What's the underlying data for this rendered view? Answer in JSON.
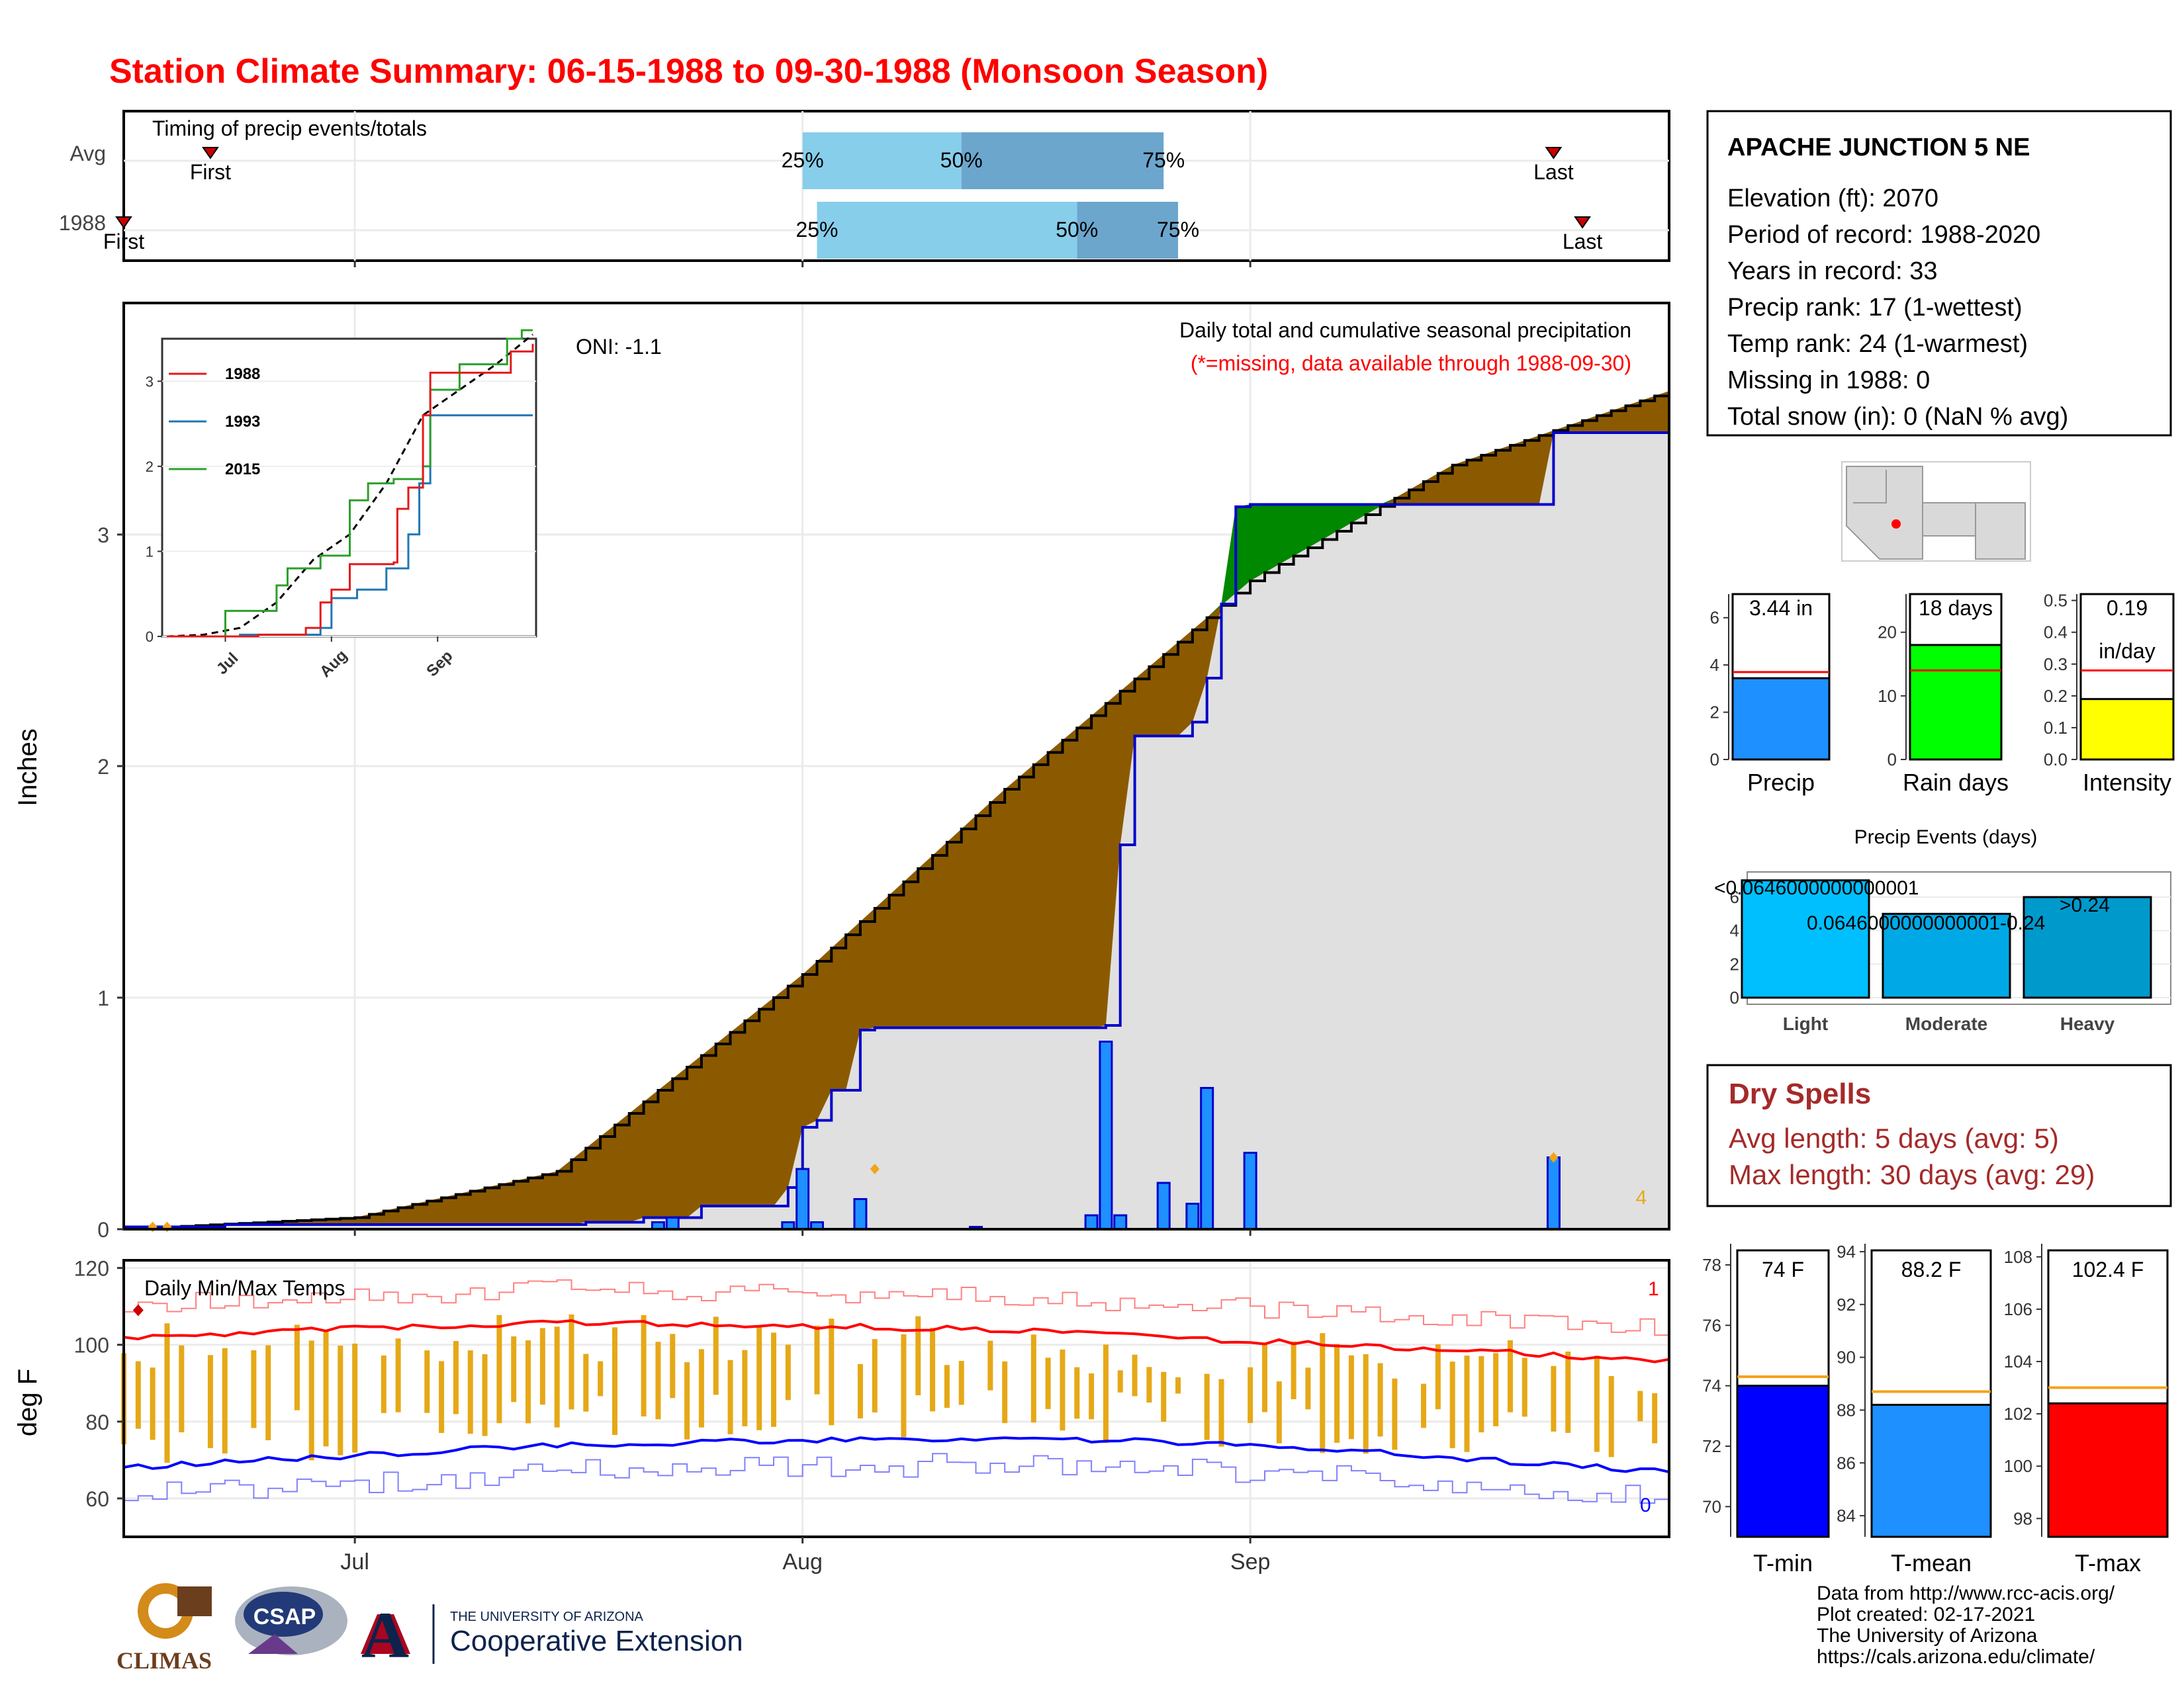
{
  "title": "Station Climate Summary: 06-15-1988 to 09-30-1988 (Monsoon Season)",
  "colors": {
    "title": "#ff0000",
    "cum_obs": "#8b5a00",
    "cum_above_avg": "#008800",
    "daily_bar": "#1e90ff",
    "tmax": "#ff0000",
    "tmin": "#0000ff",
    "range_bar": "#e6a817",
    "dry_spell": "#a52a2a"
  },
  "timing": {
    "title": "Timing of precip events/totals",
    "rows": [
      "Avg",
      "1988"
    ],
    "first_label": "First",
    "last_label": "Last",
    "pct_labels": [
      "25%",
      "50%",
      "75%"
    ]
  },
  "main_panel": {
    "ylabel": "Inches",
    "title": "Daily total and cumulative seasonal precipitation",
    "subtitle": "(*=missing, data available through 1988-09-30)",
    "oni": "ONI: -1.1",
    "y_ticks": [
      "0",
      "1",
      "2",
      "3"
    ],
    "missing_count": "4"
  },
  "inset": {
    "legend": [
      "1988",
      "1993",
      "2015"
    ],
    "y_ticks": [
      "0",
      "1",
      "2",
      "3"
    ],
    "x_ticks": [
      "Jul",
      "Aug",
      "Sep"
    ]
  },
  "temp_panel": {
    "title": "Daily Min/Max Temps",
    "ylabel": "deg F",
    "y_ticks": [
      "60",
      "80",
      "100",
      "120"
    ],
    "count_max": "1",
    "count_min": "0"
  },
  "x_axis": [
    "Jul",
    "Aug",
    "Sep"
  ],
  "station": {
    "name": "APACHE JUNCTION 5 NE",
    "lines": [
      "Elevation (ft): 2070",
      "Period of record: 1988-2020",
      "Years in record: 33",
      "Precip rank: 17 (1-wettest)",
      "Temp rank: 24 (1-warmest)",
      "Missing in 1988: 0",
      "Total snow (in): 0 (NaN % avg)"
    ]
  },
  "mini_bars": {
    "precip": {
      "label": "Precip",
      "value_text": "3.44 in",
      "ticks": [
        "0",
        "2",
        "4",
        "6"
      ]
    },
    "raindays": {
      "label": "Rain days",
      "value_text": "18 days",
      "ticks": [
        "0",
        "10",
        "20"
      ]
    },
    "intensity": {
      "label": "Intensity",
      "value_text": "0.19",
      "value_text2": "in/day",
      "ticks": [
        "0.0",
        "0.1",
        "0.2",
        "0.3",
        "0.4",
        "0.5"
      ]
    }
  },
  "events": {
    "title": "Precip Events (days)",
    "categories": [
      "Light",
      "Moderate",
      "Heavy"
    ],
    "bar_labels": [
      "<0.0646000000000001",
      "0.0646000000000001-0.24",
      ">0.24"
    ],
    "ticks": [
      "0",
      "2",
      "4",
      "6"
    ]
  },
  "dry_spells": {
    "title": "Dry Spells",
    "avg": "Avg length: 5 days (avg: 5)",
    "max": "Max length: 30 days (avg: 29)"
  },
  "temp_bars": {
    "tmin": {
      "label": "T-min",
      "value_text": "74 F",
      "ticks": [
        "70",
        "72",
        "74",
        "76",
        "78"
      ]
    },
    "tmean": {
      "label": "T-mean",
      "value_text": "88.2 F",
      "ticks": [
        "84",
        "86",
        "88",
        "90",
        "92",
        "94"
      ]
    },
    "tmax": {
      "label": "T-max",
      "value_text": "102.4 F",
      "ticks": [
        "98",
        "100",
        "102",
        "104",
        "106",
        "108"
      ]
    }
  },
  "footer": {
    "lines": [
      "Data from http://www.rcc-acis.org/",
      "Plot created: 02-17-2021",
      "The University of Arizona",
      "https://cals.arizona.edu/climate/"
    ],
    "logo_climas": "CLIMAS",
    "logo_csap": "CSAP",
    "logo_ua": "A",
    "ua_small": "THE UNIVERSITY OF ARIZONA",
    "ua_big": "Cooperative Extension"
  },
  "chart_data": [
    {
      "type": "bar",
      "name": "Timing of precip events/totals",
      "categories": [
        "Avg",
        "1988"
      ],
      "series": [
        {
          "name": "First",
          "values": [
            "1988-06-21",
            "1988-06-15"
          ]
        },
        {
          "name": "25%",
          "values": [
            "1988-08-01",
            "1988-08-02"
          ]
        },
        {
          "name": "50%",
          "values": [
            "1988-08-12",
            "1988-08-20"
          ]
        },
        {
          "name": "75%",
          "values": [
            "1988-08-26",
            "1988-08-27"
          ]
        },
        {
          "name": "Last",
          "values": [
            "1988-09-22",
            "1988-09-24"
          ]
        }
      ]
    },
    {
      "type": "area",
      "title": "Daily total and cumulative seasonal precipitation",
      "ylabel": "Inches",
      "xlim": [
        "1988-06-15",
        "1988-09-30"
      ],
      "ylim": [
        0,
        4
      ],
      "cumulative_1988": {
        "x": [
          "1988-06-15",
          "1988-06-22",
          "1988-07-08",
          "1988-07-17",
          "1988-07-21",
          "1988-07-25",
          "1988-07-31",
          "1988-08-01",
          "1988-08-02",
          "1988-08-03",
          "1988-08-05",
          "1988-08-06",
          "1988-08-22",
          "1988-08-23",
          "1988-08-24",
          "1988-08-28",
          "1988-08-29",
          "1988-08-30",
          "1988-08-31",
          "1988-09-01",
          "1988-09-22",
          "1988-09-30"
        ],
        "y": [
          0.01,
          0.02,
          0.02,
          0.03,
          0.05,
          0.1,
          0.18,
          0.44,
          0.47,
          0.6,
          0.86,
          0.87,
          0.88,
          1.66,
          2.13,
          2.19,
          2.38,
          2.7,
          3.12,
          3.13,
          3.44,
          3.44
        ]
      },
      "cumulative_avg": {
        "x": [
          "1988-06-15",
          "1988-07-01",
          "1988-07-15",
          "1988-08-01",
          "1988-08-15",
          "1988-09-01",
          "1988-09-15",
          "1988-09-30"
        ],
        "y": [
          0.0,
          0.05,
          0.25,
          1.1,
          1.9,
          2.8,
          3.3,
          3.62
        ]
      },
      "daily_1988": {
        "x": [
          "1988-07-22",
          "1988-07-23",
          "1988-07-31",
          "1988-08-01",
          "1988-08-02",
          "1988-08-05",
          "1988-08-13",
          "1988-08-21",
          "1988-08-22",
          "1988-08-23",
          "1988-08-26",
          "1988-08-28",
          "1988-08-29",
          "1988-09-01",
          "1988-09-22"
        ],
        "y": [
          0.03,
          0.05,
          0.03,
          0.26,
          0.03,
          0.13,
          0.01,
          0.06,
          0.81,
          0.06,
          0.2,
          0.11,
          0.61,
          0.33,
          0.31
        ]
      }
    },
    {
      "type": "line",
      "name": "Inset cumulative precipitation",
      "x_ticks": [
        "Jul",
        "Aug",
        "Sep"
      ],
      "ylim": [
        0,
        3.5
      ],
      "series": [
        {
          "name": "1988",
          "values": [
            0.02,
            0.55,
            3.44
          ]
        },
        {
          "name": "1993",
          "values": [
            0.02,
            0.4,
            2.6
          ]
        },
        {
          "name": "2015",
          "values": [
            0.3,
            0.95,
            3.6
          ]
        }
      ]
    },
    {
      "type": "line",
      "title": "Daily Min/Max Temps",
      "ylabel": "deg F",
      "ylim": [
        50,
        122
      ],
      "tmax_avg": {
        "x": [
          "1988-06-15",
          "1988-07-15",
          "1988-08-15",
          "1988-09-01",
          "1988-09-30"
        ],
        "y": [
          102,
          106,
          104,
          101,
          96
        ]
      },
      "tmin_avg": {
        "x": [
          "1988-06-15",
          "1988-07-15",
          "1988-08-15",
          "1988-09-01",
          "1988-09-30"
        ],
        "y": [
          68,
          74,
          76,
          74,
          67
        ]
      }
    },
    {
      "type": "bar",
      "name": "Seasonal totals",
      "categories": [
        "Precip",
        "Rain days",
        "Intensity"
      ],
      "values": [
        3.44,
        18,
        0.19
      ],
      "averages": [
        3.7,
        14,
        0.28
      ]
    },
    {
      "type": "bar",
      "title": "Precip Events (days)",
      "categories": [
        "Light",
        "Moderate",
        "Heavy"
      ],
      "values": [
        7,
        5,
        6
      ]
    },
    {
      "type": "bar",
      "name": "Temperature means",
      "categories": [
        "T-min",
        "T-mean",
        "T-max"
      ],
      "values": [
        74,
        88.2,
        102.4
      ],
      "averages": [
        74.3,
        88.7,
        103.0
      ]
    }
  ]
}
